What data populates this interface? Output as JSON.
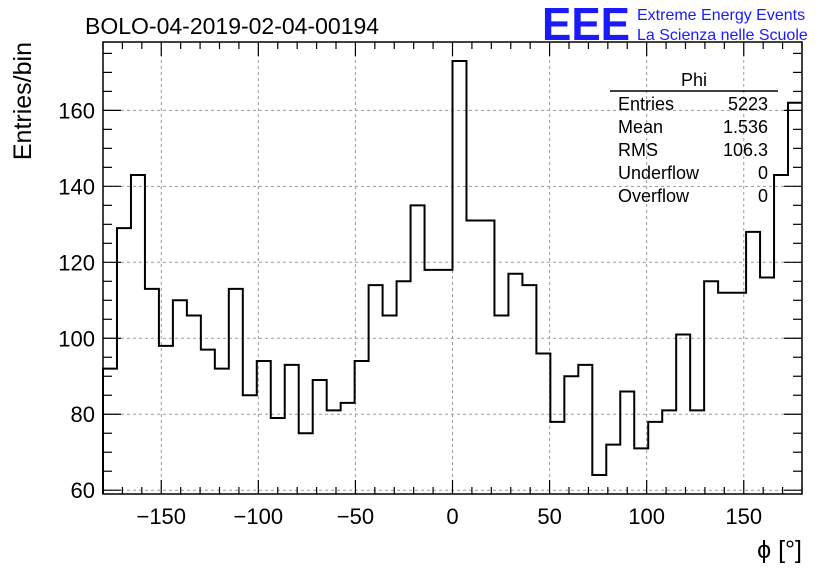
{
  "chart_data": {
    "type": "histogram",
    "title": "BOLO-04-2019-02-04-00194",
    "xlabel": "ϕ [°]",
    "ylabel": "Entries/bin",
    "xlim": [
      -180,
      180
    ],
    "ylim": [
      59,
      178
    ],
    "grid": true,
    "x_ticks": [
      -150,
      -100,
      -50,
      0,
      50,
      100,
      150
    ],
    "x_tick_labels": [
      "−150",
      "−100",
      "−50",
      "0",
      "50",
      "100",
      "150"
    ],
    "y_ticks": [
      60,
      80,
      100,
      120,
      140,
      160
    ],
    "y_tick_labels": [
      "60",
      "80",
      "100",
      "120",
      "140",
      "160"
    ],
    "bin_edges_start": -180,
    "bin_width": 7.2,
    "values": [
      92,
      129,
      143,
      113,
      98,
      110,
      106,
      97,
      92,
      113,
      85,
      94,
      79,
      93,
      75,
      89,
      81,
      83,
      94,
      114,
      106,
      115,
      135,
      118,
      118,
      173,
      131,
      131,
      106,
      117,
      114,
      96,
      78,
      90,
      93,
      64,
      72,
      86,
      71,
      78,
      81,
      101,
      81,
      115,
      112,
      112,
      128,
      116,
      143,
      162
    ],
    "stats_box": {
      "title": "Phi",
      "rows": [
        {
          "label": "Entries",
          "value": "5223"
        },
        {
          "label": "Mean",
          "value": "1.536"
        },
        {
          "label": "RMS",
          "value": "106.3"
        },
        {
          "label": "Underflow",
          "value": "0"
        },
        {
          "label": "Overflow",
          "value": "0"
        }
      ]
    }
  },
  "logo": {
    "mark": "EEE",
    "line1": "Extreme Energy Events",
    "line2": "La Scienza nelle Scuole",
    "color": "#1a1aff"
  }
}
